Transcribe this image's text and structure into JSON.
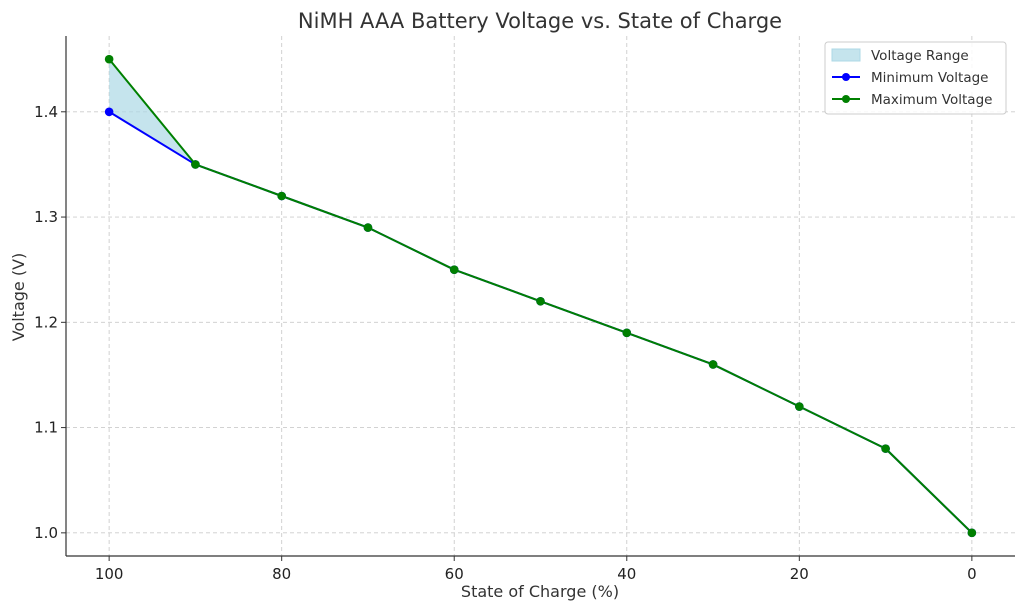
{
  "chart_data": {
    "type": "line",
    "title": "NiMH AAA Battery Voltage vs. State of Charge",
    "xlabel": "State of Charge (%)",
    "ylabel": "Voltage (V)",
    "x": [
      100,
      90,
      80,
      70,
      60,
      50,
      40,
      30,
      20,
      10,
      0
    ],
    "xlim": [
      105,
      -5
    ],
    "ylim": [
      0.978,
      1.472
    ],
    "x_inverted": true,
    "xticks": [
      100,
      80,
      60,
      40,
      20,
      0
    ],
    "xtick_labels": [
      "100",
      "80",
      "60",
      "40",
      "20",
      "0"
    ],
    "yticks": [
      1.0,
      1.1,
      1.2,
      1.3,
      1.4
    ],
    "ytick_labels": [
      "1.0",
      "1.1",
      "1.2",
      "1.3",
      "1.4"
    ],
    "grid": true,
    "legend_position": "top-right",
    "series": [
      {
        "name": "Minimum Voltage",
        "color": "#0000ff",
        "marker": "circle",
        "values": [
          1.4,
          1.35,
          1.32,
          1.29,
          1.25,
          1.22,
          1.19,
          1.16,
          1.12,
          1.08,
          1.0
        ]
      },
      {
        "name": "Maximum Voltage",
        "color": "#008000",
        "marker": "circle",
        "values": [
          1.45,
          1.35,
          1.32,
          1.29,
          1.25,
          1.22,
          1.19,
          1.16,
          1.12,
          1.08,
          1.0
        ]
      }
    ],
    "fill_between": {
      "name": "Voltage Range",
      "color": "#add8e6",
      "opacity": 0.7,
      "lower_series": "Minimum Voltage",
      "upper_series": "Maximum Voltage"
    }
  }
}
